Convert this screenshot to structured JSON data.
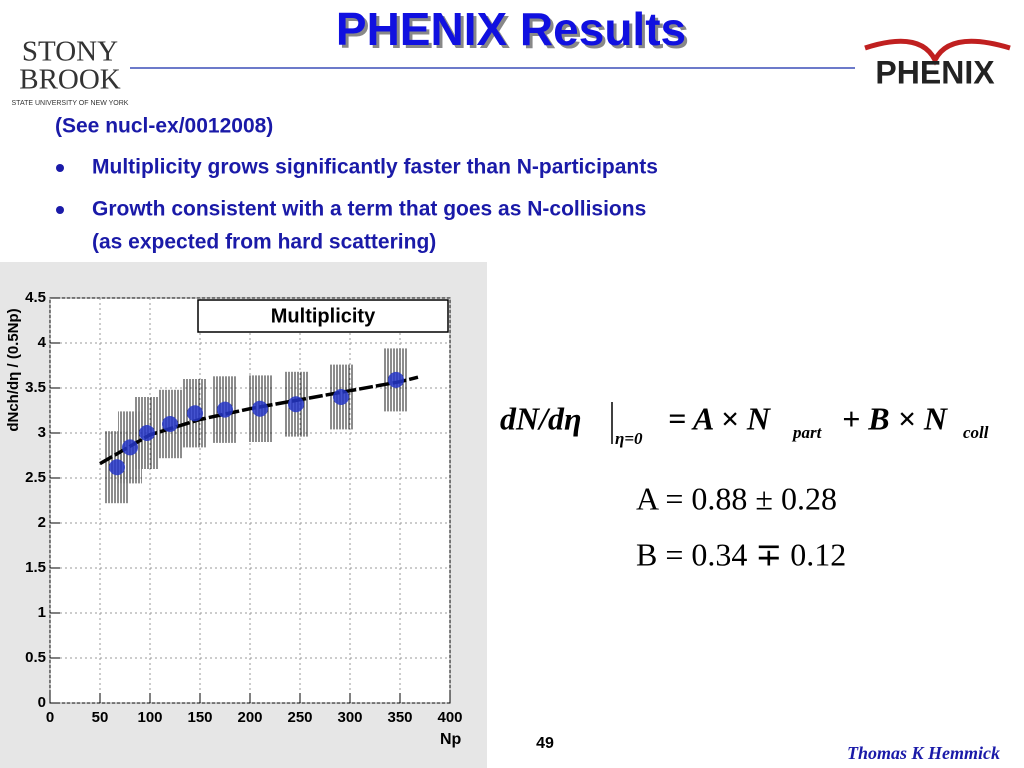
{
  "header": {
    "title": "PHENIX Results",
    "logo_left": [
      "STONY",
      "BROOK",
      "STATE UNIVERSITY OF NEW YORK"
    ],
    "logo_right": "PHENIX"
  },
  "reference": "(See nucl-ex/0012008)",
  "bullets": [
    "Multiplicity grows significantly faster than N-participants",
    "Growth consistent with a term that goes as N-collisions",
    "(as expected from hard scattering)"
  ],
  "chart_data": {
    "type": "scatter",
    "title": "Multiplicity",
    "x_label": "Np",
    "y_label": "dNch/dη / (0.5Np)",
    "x": [
      67,
      80,
      97,
      120,
      145,
      175,
      210,
      246,
      291,
      346
    ],
    "series": [
      {
        "color": "#2436c8",
        "values": [
          2.62,
          2.84,
          3.0,
          3.1,
          3.22,
          3.26,
          3.27,
          3.32,
          3.4,
          3.59
        ],
        "errors": [
          0.4,
          0.4,
          0.4,
          0.38,
          0.38,
          0.37,
          0.37,
          0.36,
          0.36,
          0.35
        ]
      }
    ],
    "fit": {
      "color": "#000000",
      "x": [
        50,
        100,
        150,
        200,
        250,
        300,
        350,
        368
      ],
      "values": [
        2.66,
        2.98,
        3.15,
        3.27,
        3.37,
        3.47,
        3.57,
        3.62
      ]
    },
    "xlim": [
      0,
      400
    ],
    "xticks": [
      0,
      50,
      100,
      150,
      200,
      250,
      300,
      350,
      400
    ],
    "ylim": [
      0,
      4.5
    ],
    "yticks": [
      0,
      0.5,
      1,
      1.5,
      2,
      2.5,
      3,
      3.5,
      4,
      4.5
    ],
    "grid": true
  },
  "formula": {
    "lhs": "dN/dη",
    "sub": "η=0",
    "rhs": [
      "= A × N",
      "part",
      "+ B × N",
      "coll"
    ],
    "A": "A = 0.88 ± 0.28",
    "B": "B = 0.34 ∓ 0.12"
  },
  "footer": {
    "page": "49",
    "author": "Thomas K Hemmick"
  }
}
